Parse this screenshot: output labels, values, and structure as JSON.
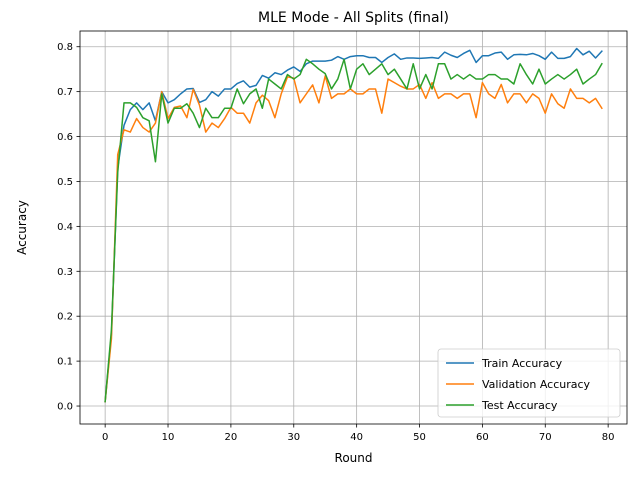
{
  "chart_data": {
    "type": "line",
    "title": "MLE Mode - All Splits (final)",
    "xlabel": "Round",
    "ylabel": "Accuracy",
    "xlim": [
      -4,
      83
    ],
    "ylim": [
      -0.04,
      0.835
    ],
    "xticks": [
      0,
      10,
      20,
      30,
      40,
      50,
      60,
      70,
      80
    ],
    "yticks": [
      0.0,
      0.1,
      0.2,
      0.3,
      0.4,
      0.5,
      0.6,
      0.7,
      0.8
    ],
    "ytick_labels": [
      "0.0",
      "0.1",
      "0.2",
      "0.3",
      "0.4",
      "0.5",
      "0.6",
      "0.7",
      "0.8"
    ],
    "grid": true,
    "legend_position": "bottom-right",
    "x": [
      0,
      1,
      2,
      3,
      4,
      5,
      6,
      7,
      8,
      9,
      10,
      11,
      12,
      13,
      14,
      15,
      16,
      17,
      18,
      19,
      20,
      21,
      22,
      23,
      24,
      25,
      26,
      27,
      28,
      29,
      30,
      31,
      32,
      33,
      34,
      35,
      36,
      37,
      38,
      39,
      40,
      41,
      42,
      43,
      44,
      45,
      46,
      47,
      48,
      49,
      50,
      51,
      52,
      53,
      54,
      55,
      56,
      57,
      58,
      59,
      60,
      61,
      62,
      63,
      64,
      65,
      66,
      67,
      68,
      69,
      70,
      71,
      72,
      73,
      74,
      75,
      76,
      77,
      78,
      79
    ],
    "series": [
      {
        "name": "Train Accuracy",
        "color": "#1f77b4",
        "values": [
          0.01,
          0.16,
          0.53,
          0.625,
          0.66,
          0.675,
          0.66,
          0.675,
          0.635,
          0.7,
          0.675,
          0.682,
          0.695,
          0.706,
          0.707,
          0.676,
          0.682,
          0.7,
          0.69,
          0.706,
          0.706,
          0.718,
          0.724,
          0.71,
          0.714,
          0.736,
          0.73,
          0.742,
          0.738,
          0.748,
          0.755,
          0.745,
          0.762,
          0.768,
          0.768,
          0.768,
          0.77,
          0.778,
          0.772,
          0.778,
          0.78,
          0.78,
          0.776,
          0.776,
          0.765,
          0.776,
          0.784,
          0.772,
          0.775,
          0.775,
          0.774,
          0.775,
          0.776,
          0.774,
          0.788,
          0.781,
          0.776,
          0.785,
          0.792,
          0.765,
          0.78,
          0.78,
          0.786,
          0.788,
          0.772,
          0.782,
          0.783,
          0.782,
          0.785,
          0.78,
          0.772,
          0.788,
          0.774,
          0.774,
          0.778,
          0.796,
          0.782,
          0.79,
          0.775,
          0.79
        ]
      },
      {
        "name": "Validation Accuracy",
        "color": "#ff7f0e",
        "values": [
          0.01,
          0.15,
          0.56,
          0.615,
          0.61,
          0.64,
          0.62,
          0.61,
          0.63,
          0.7,
          0.64,
          0.665,
          0.668,
          0.642,
          0.705,
          0.67,
          0.61,
          0.63,
          0.62,
          0.64,
          0.665,
          0.652,
          0.652,
          0.63,
          0.675,
          0.692,
          0.68,
          0.642,
          0.695,
          0.733,
          0.73,
          0.675,
          0.695,
          0.715,
          0.675,
          0.735,
          0.685,
          0.695,
          0.695,
          0.706,
          0.695,
          0.695,
          0.706,
          0.706,
          0.652,
          0.728,
          0.72,
          0.712,
          0.706,
          0.706,
          0.716,
          0.685,
          0.72,
          0.685,
          0.695,
          0.695,
          0.685,
          0.695,
          0.695,
          0.642,
          0.72,
          0.695,
          0.685,
          0.716,
          0.675,
          0.695,
          0.695,
          0.675,
          0.695,
          0.685,
          0.652,
          0.695,
          0.673,
          0.663,
          0.706,
          0.685,
          0.685,
          0.675,
          0.685,
          0.663
        ]
      },
      {
        "name": "Test Accuracy",
        "color": "#2ca02c",
        "values": [
          0.01,
          0.17,
          0.52,
          0.675,
          0.675,
          0.665,
          0.642,
          0.635,
          0.544,
          0.695,
          0.63,
          0.663,
          0.663,
          0.673,
          0.652,
          0.62,
          0.663,
          0.642,
          0.642,
          0.663,
          0.663,
          0.706,
          0.673,
          0.695,
          0.706,
          0.663,
          0.728,
          0.717,
          0.706,
          0.738,
          0.728,
          0.738,
          0.772,
          0.762,
          0.75,
          0.74,
          0.706,
          0.728,
          0.772,
          0.706,
          0.75,
          0.762,
          0.738,
          0.75,
          0.762,
          0.738,
          0.75,
          0.728,
          0.706,
          0.762,
          0.706,
          0.738,
          0.706,
          0.762,
          0.762,
          0.728,
          0.738,
          0.728,
          0.738,
          0.728,
          0.728,
          0.738,
          0.738,
          0.728,
          0.728,
          0.717,
          0.762,
          0.738,
          0.717,
          0.75,
          0.717,
          0.728,
          0.738,
          0.728,
          0.738,
          0.75,
          0.717,
          0.728,
          0.738,
          0.762
        ]
      }
    ]
  }
}
